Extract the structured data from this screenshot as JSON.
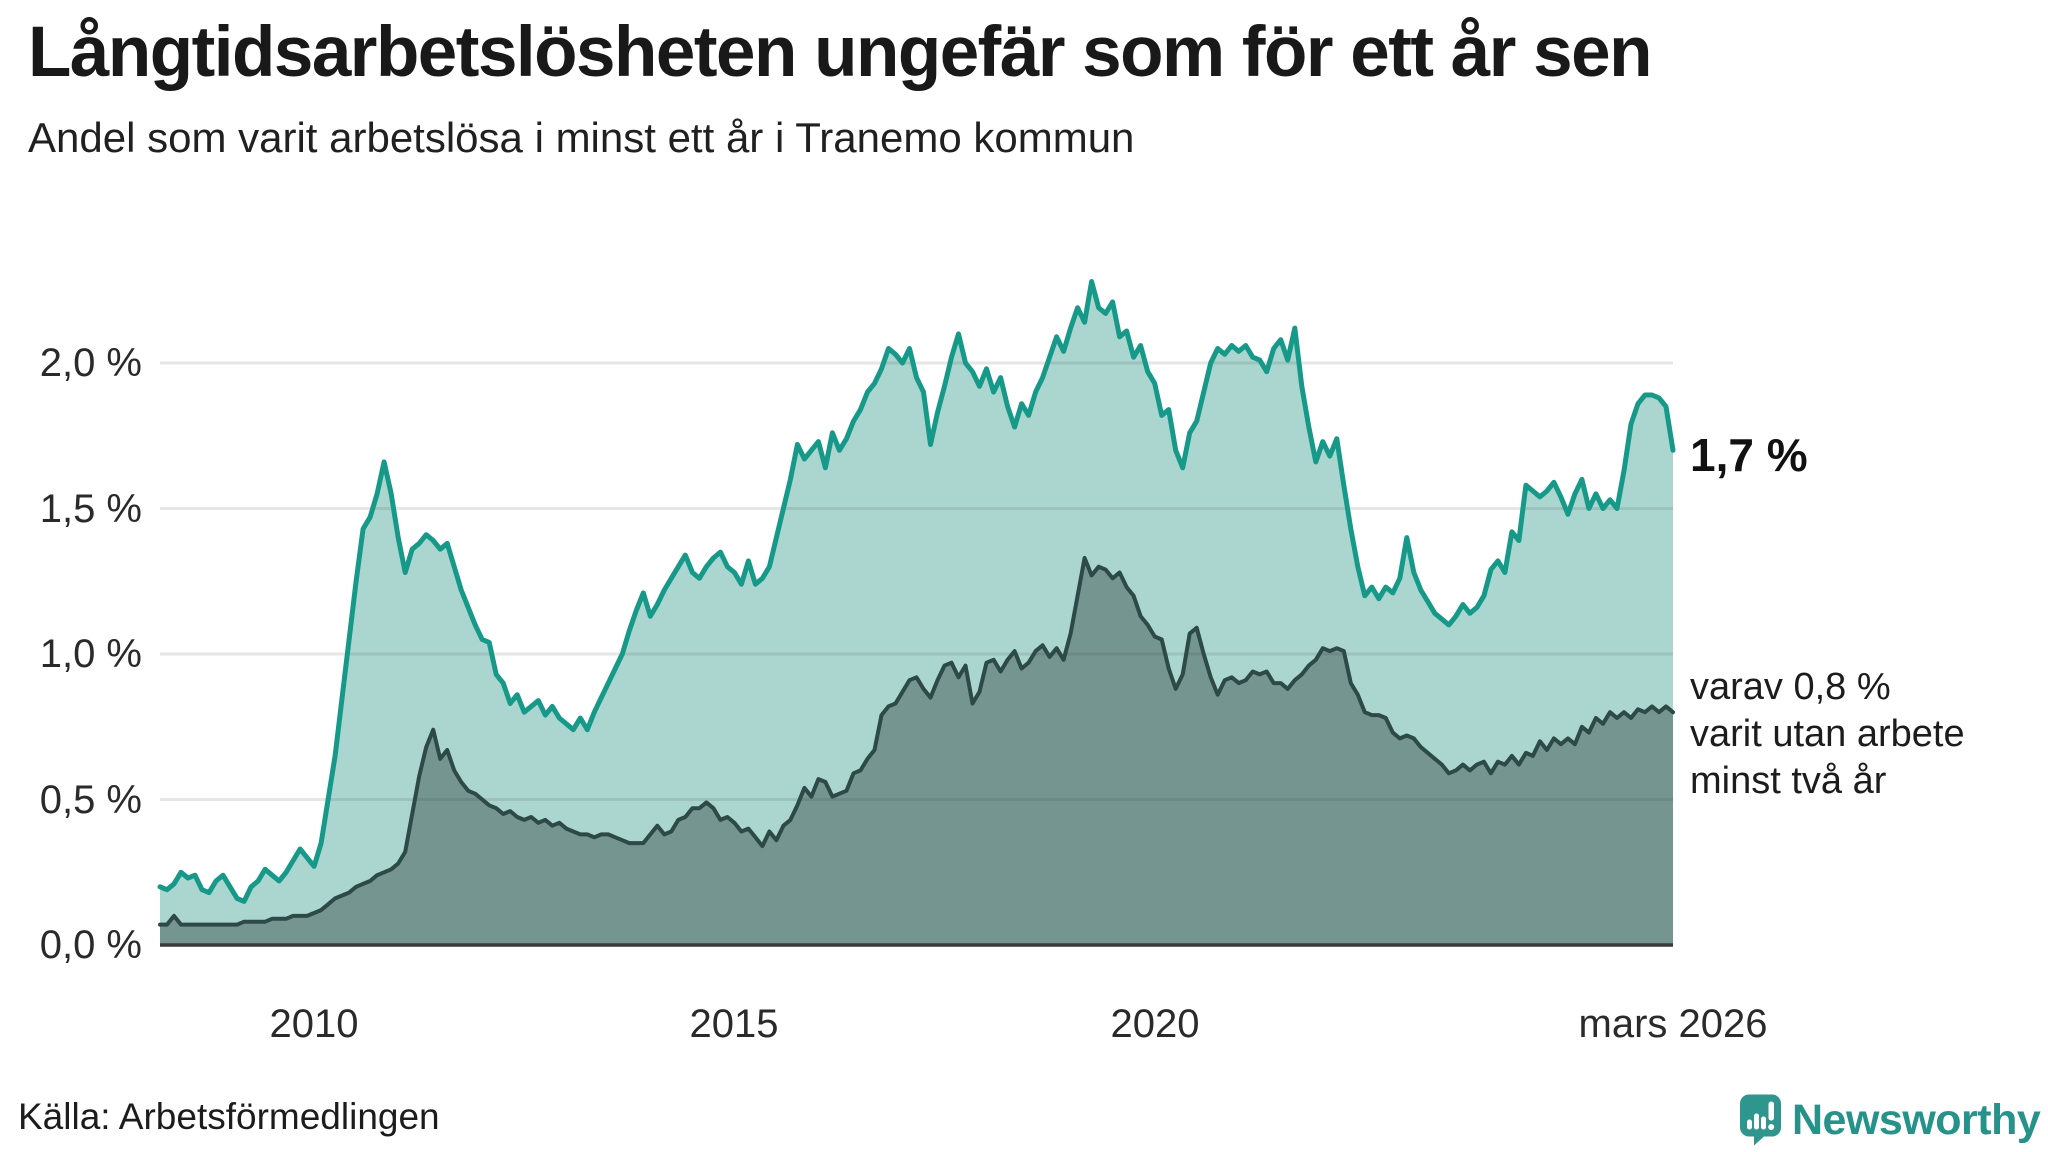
{
  "title": "Långtidsarbetslösheten ungefär som för ett år sen",
  "subtitle": "Andel som varit arbetslösa i minst ett år i Tranemo kommun",
  "source": "Källa: Arbetsförmedlingen",
  "branding": {
    "name": "Newsworthy"
  },
  "annotations": {
    "latest_value": "1,7 %",
    "secondary": [
      "varav 0,8 %",
      "varit utan arbete",
      "minst två år"
    ]
  },
  "axes": {
    "y_ticks": [
      "2,0 %",
      "1,5 %",
      "1,0 %",
      "0,5 %",
      "0,0 %"
    ],
    "x_ticks": [
      "2010",
      "2015",
      "2020",
      "mars 2026"
    ]
  },
  "colors": {
    "accent_teal": "#179989",
    "light_fill": "#aad6cf",
    "dark_line": "#2d4a47",
    "dark_fill": "#759591",
    "grid": "rgba(60,60,60,0.13)",
    "axis": "#3a3a3a",
    "brand_text": "#26928a",
    "brand_icon": "#2f968e"
  },
  "chart_data": {
    "type": "area",
    "title": "Långtidsarbetslösheten ungefär som för ett år sen",
    "subtitle": "Andel som varit arbetslösa i minst ett år i Tranemo kommun",
    "unit": "%",
    "interval": "monthly",
    "x_start": "2008-03",
    "x_end": "2026-03",
    "ylim": [
      0,
      2.3
    ],
    "grid": "horizontal",
    "legend_position": "right-annotations",
    "y_tick_values": [
      2.0,
      1.5,
      1.0,
      0.5,
      0.0
    ],
    "y_tick_labels": [
      "2,0 %",
      "1,5 %",
      "1,0 %",
      "0,5 %",
      "0,0 %"
    ],
    "x_tick_indices": [
      22,
      82,
      142,
      216
    ],
    "x_tick_labels": [
      "2010",
      "2015",
      "2020",
      "mars 2026"
    ],
    "latest_values": {
      "minst_ett_ar": 1.7,
      "minst_tva_ar": 0.8
    },
    "series": [
      {
        "name": "Andel arbetslösa minst ett år",
        "color": "#179989",
        "fill": "#aad6cf",
        "line_width": 5,
        "values": [
          0.2,
          0.19,
          0.21,
          0.25,
          0.23,
          0.24,
          0.19,
          0.18,
          0.22,
          0.24,
          0.2,
          0.16,
          0.15,
          0.2,
          0.22,
          0.26,
          0.24,
          0.22,
          0.25,
          0.29,
          0.33,
          0.3,
          0.27,
          0.35,
          0.5,
          0.65,
          0.85,
          1.05,
          1.25,
          1.43,
          1.47,
          1.55,
          1.66,
          1.55,
          1.4,
          1.28,
          1.36,
          1.38,
          1.41,
          1.39,
          1.36,
          1.38,
          1.3,
          1.22,
          1.16,
          1.1,
          1.05,
          1.04,
          0.93,
          0.9,
          0.83,
          0.86,
          0.8,
          0.82,
          0.84,
          0.79,
          0.82,
          0.78,
          0.76,
          0.74,
          0.78,
          0.74,
          0.8,
          0.85,
          0.9,
          0.95,
          1.0,
          1.08,
          1.15,
          1.21,
          1.13,
          1.17,
          1.22,
          1.26,
          1.3,
          1.34,
          1.28,
          1.26,
          1.3,
          1.33,
          1.35,
          1.3,
          1.28,
          1.24,
          1.32,
          1.24,
          1.26,
          1.3,
          1.4,
          1.5,
          1.6,
          1.72,
          1.67,
          1.7,
          1.73,
          1.64,
          1.76,
          1.7,
          1.74,
          1.8,
          1.84,
          1.9,
          1.93,
          1.98,
          2.05,
          2.03,
          2.0,
          2.05,
          1.95,
          1.9,
          1.72,
          1.83,
          1.92,
          2.02,
          2.1,
          2.0,
          1.97,
          1.92,
          1.98,
          1.9,
          1.95,
          1.85,
          1.78,
          1.86,
          1.82,
          1.9,
          1.95,
          2.02,
          2.09,
          2.04,
          2.12,
          2.19,
          2.14,
          2.28,
          2.19,
          2.17,
          2.21,
          2.09,
          2.11,
          2.02,
          2.06,
          1.97,
          1.93,
          1.82,
          1.84,
          1.7,
          1.64,
          1.76,
          1.8,
          1.9,
          2.0,
          2.05,
          2.03,
          2.06,
          2.04,
          2.06,
          2.02,
          2.01,
          1.97,
          2.05,
          2.08,
          2.01,
          2.12,
          1.92,
          1.78,
          1.66,
          1.73,
          1.68,
          1.74,
          1.58,
          1.43,
          1.3,
          1.2,
          1.23,
          1.19,
          1.23,
          1.21,
          1.26,
          1.4,
          1.28,
          1.22,
          1.18,
          1.14,
          1.12,
          1.1,
          1.13,
          1.17,
          1.14,
          1.16,
          1.2,
          1.29,
          1.32,
          1.28,
          1.42,
          1.39,
          1.58,
          1.56,
          1.54,
          1.56,
          1.59,
          1.54,
          1.48,
          1.55,
          1.6,
          1.5,
          1.55,
          1.5,
          1.53,
          1.5,
          1.63,
          1.79,
          1.86,
          1.89,
          1.89,
          1.88,
          1.85,
          1.7
        ]
      },
      {
        "name": "varav arbetslösa minst två år",
        "color": "#2d4a47",
        "fill": "#759591",
        "line_width": 4,
        "values": [
          0.07,
          0.07,
          0.1,
          0.07,
          0.07,
          0.07,
          0.07,
          0.07,
          0.07,
          0.07,
          0.07,
          0.07,
          0.08,
          0.08,
          0.08,
          0.08,
          0.09,
          0.09,
          0.09,
          0.1,
          0.1,
          0.1,
          0.11,
          0.12,
          0.14,
          0.16,
          0.17,
          0.18,
          0.2,
          0.21,
          0.22,
          0.24,
          0.25,
          0.26,
          0.28,
          0.32,
          0.45,
          0.58,
          0.68,
          0.74,
          0.64,
          0.67,
          0.6,
          0.56,
          0.53,
          0.52,
          0.5,
          0.48,
          0.47,
          0.45,
          0.46,
          0.44,
          0.43,
          0.44,
          0.42,
          0.43,
          0.41,
          0.42,
          0.4,
          0.39,
          0.38,
          0.38,
          0.37,
          0.38,
          0.38,
          0.37,
          0.36,
          0.35,
          0.35,
          0.35,
          0.38,
          0.41,
          0.38,
          0.39,
          0.43,
          0.44,
          0.47,
          0.47,
          0.49,
          0.47,
          0.43,
          0.44,
          0.42,
          0.39,
          0.4,
          0.37,
          0.34,
          0.39,
          0.36,
          0.41,
          0.43,
          0.48,
          0.54,
          0.51,
          0.57,
          0.56,
          0.51,
          0.52,
          0.53,
          0.59,
          0.6,
          0.64,
          0.67,
          0.79,
          0.82,
          0.83,
          0.87,
          0.91,
          0.92,
          0.88,
          0.85,
          0.91,
          0.96,
          0.97,
          0.92,
          0.96,
          0.83,
          0.87,
          0.97,
          0.98,
          0.94,
          0.98,
          1.01,
          0.95,
          0.97,
          1.01,
          1.03,
          0.99,
          1.02,
          0.98,
          1.07,
          1.2,
          1.33,
          1.27,
          1.3,
          1.29,
          1.26,
          1.28,
          1.23,
          1.2,
          1.13,
          1.1,
          1.06,
          1.05,
          0.95,
          0.88,
          0.93,
          1.07,
          1.09,
          1.0,
          0.92,
          0.86,
          0.91,
          0.92,
          0.9,
          0.91,
          0.94,
          0.93,
          0.94,
          0.9,
          0.9,
          0.88,
          0.91,
          0.93,
          0.96,
          0.98,
          1.02,
          1.01,
          1.02,
          1.01,
          0.9,
          0.86,
          0.8,
          0.79,
          0.79,
          0.78,
          0.73,
          0.71,
          0.72,
          0.71,
          0.68,
          0.66,
          0.64,
          0.62,
          0.59,
          0.6,
          0.62,
          0.6,
          0.62,
          0.63,
          0.59,
          0.63,
          0.62,
          0.65,
          0.62,
          0.66,
          0.65,
          0.7,
          0.67,
          0.71,
          0.69,
          0.71,
          0.69,
          0.75,
          0.73,
          0.78,
          0.76,
          0.8,
          0.78,
          0.8,
          0.78,
          0.81,
          0.8,
          0.82,
          0.8,
          0.82,
          0.8
        ]
      }
    ]
  }
}
